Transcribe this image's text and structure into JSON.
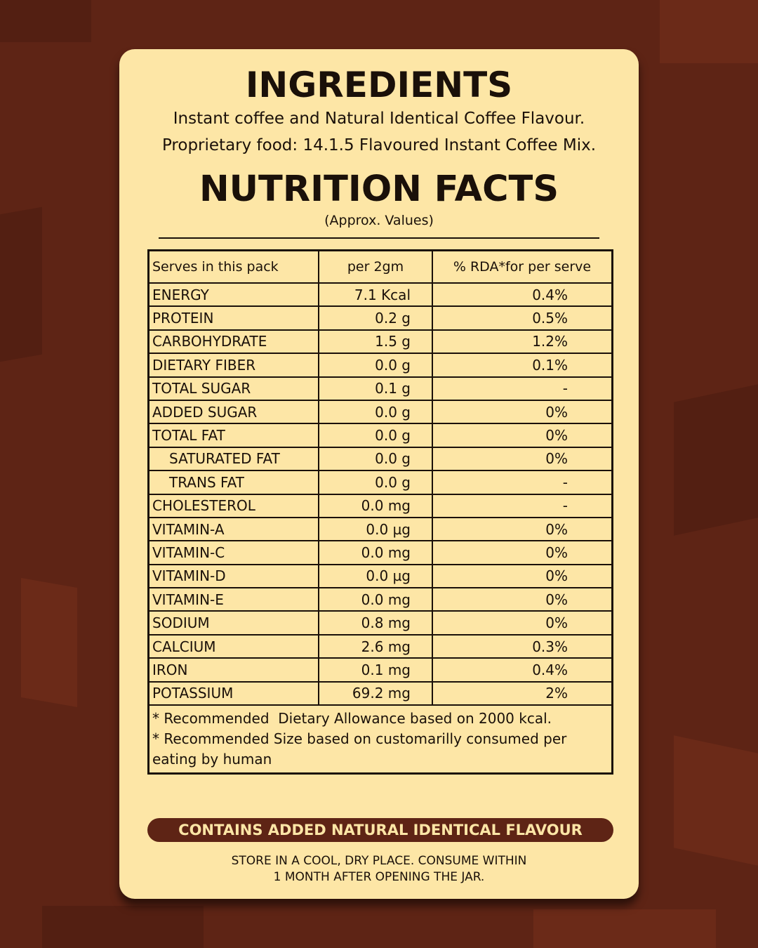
{
  "ingredients": {
    "title": "INGREDIENTS",
    "line1": "Instant coffee and Natural Identical Coffee Flavour.",
    "line2": "Proprietary food: 14.1.5 Flavoured Instant Coffee Mix."
  },
  "nutrition": {
    "title": "NUTRITION FACTS",
    "subtitle": "(Approx. Values)",
    "header": [
      "Serves in this pack",
      "per 2gm",
      "% RDA*for per serve"
    ],
    "rows": [
      {
        "name": "ENERGY",
        "per": "7.1 Kcal",
        "rda": "0.4%"
      },
      {
        "name": "PROTEIN",
        "per": "0.2 g",
        "rda": "0.5%"
      },
      {
        "name": "CARBOHYDRATE",
        "per": "1.5 g",
        "rda": "1.2%"
      },
      {
        "name": "DIETARY FIBER",
        "per": "0.0 g",
        "rda": "0.1%"
      },
      {
        "name": "TOTAL SUGAR",
        "per": "0.1 g",
        "rda": "-"
      },
      {
        "name": "ADDED SUGAR",
        "per": "0.0 g",
        "rda": "0%"
      },
      {
        "name": "TOTAL FAT",
        "per": "0.0 g",
        "rda": "0%"
      },
      {
        "name": "SATURATED FAT",
        "per": "0.0 g",
        "rda": "0%"
      },
      {
        "name": "TRANS FAT",
        "per": "0.0 g",
        "rda": "-"
      },
      {
        "name": "CHOLESTEROL",
        "per": "0.0 mg",
        "rda": "-"
      },
      {
        "name": "VITAMIN-A",
        "per": "0.0 µg",
        "rda": "0%"
      },
      {
        "name": "VITAMIN-C",
        "per": "0.0 mg",
        "rda": "0%"
      },
      {
        "name": "VITAMIN-D",
        "per": "0.0 µg",
        "rda": "0%"
      },
      {
        "name": "VITAMIN-E",
        "per": "0.0 mg",
        "rda": "0%"
      },
      {
        "name": "SODIUM",
        "per": "0.8 mg",
        "rda": "0%"
      },
      {
        "name": "CALCIUM",
        "per": "2.6 mg",
        "rda": "0.3%"
      },
      {
        "name": "IRON",
        "per": "0.1 mg",
        "rda": "0.4%"
      },
      {
        "name": "POTASSIUM",
        "per": "69.2 mg",
        "rda": "2%"
      }
    ],
    "note1": "* Recommended  Dietary Allowance based on 2000 kcal.",
    "note2": "* Recommended Size based on customarilly consumed per eating by human"
  },
  "banner": "CONTAINS ADDED NATURAL IDENTICAL FLAVOUR",
  "storage": {
    "line1": "STORE IN A COOL, DRY PLACE. CONSUME WITHIN",
    "line2": "1 MONTH AFTER OPENING THE JAR."
  },
  "colors": {
    "background": "#5e2415",
    "card": "#fde6a6",
    "text": "#1a1009"
  }
}
